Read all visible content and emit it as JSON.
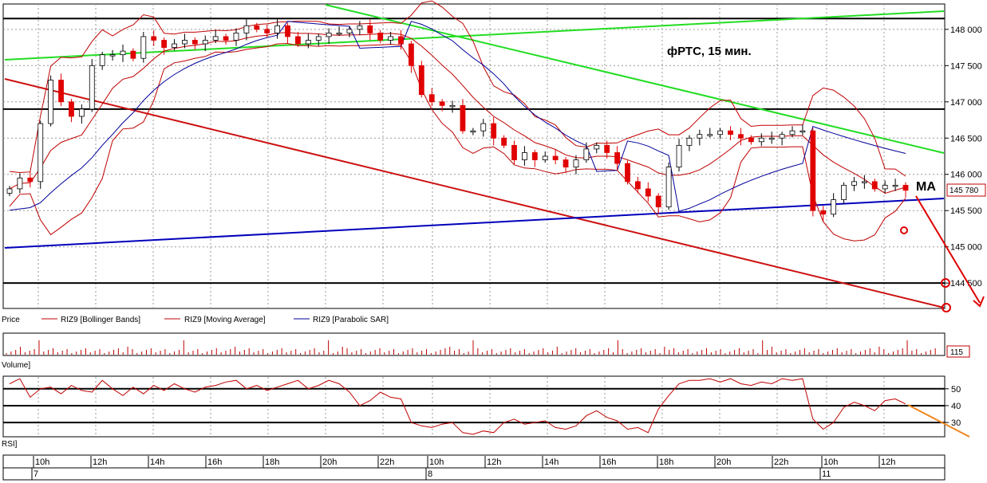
{
  "chart_data": {
    "type": "candlestick",
    "title": "фРТС,  15 мин.",
    "annotation_ma": "MA",
    "price_panel": {
      "ylim": [
        144150,
        148350
      ],
      "yticks": [
        144500,
        145000,
        145500,
        146000,
        146500,
        147000,
        147500,
        148000
      ],
      "ytick_labels": [
        "144 500",
        "145 000",
        "145 500",
        "146 000",
        "146 500",
        "147 000",
        "147 500",
        "148 000"
      ],
      "last_price": 145780,
      "last_price_label": "145 780",
      "horizontal_levels": [
        144500,
        146900,
        148150
      ],
      "legend": {
        "price": "Price",
        "bollinger": "RIZ9 [Bollinger Bands]",
        "moving_average": "RIZ9 [Moving Average]",
        "parabolic_sar": "RIZ9 [Parabolic SAR]"
      },
      "close_series": [
        145800,
        145950,
        145900,
        146700,
        147300,
        147000,
        146800,
        146900,
        147500,
        147650,
        147650,
        147700,
        147600,
        147900,
        147850,
        147750,
        147800,
        147850,
        147800,
        147850,
        147900,
        147850,
        147950,
        148050,
        148000,
        147950,
        148050,
        147900,
        147800,
        147850,
        147900,
        147950,
        147950,
        148000,
        148050,
        147950,
        147850,
        147900,
        147800,
        147500,
        147100,
        147000,
        146950,
        146950,
        146600,
        146600,
        146700,
        146500,
        146400,
        146200,
        146300,
        146200,
        146250,
        146200,
        146100,
        146200,
        146350,
        146400,
        146300,
        146150,
        145900,
        145800,
        145700,
        145550,
        146100,
        146400,
        146500,
        146550,
        146550,
        146600,
        146550,
        146500,
        146450,
        146500,
        146500,
        146550,
        146600,
        146600,
        145500,
        145450,
        145650,
        145850,
        145900,
        145900,
        145800,
        145850,
        145850,
        145780
      ]
    },
    "volume_panel": {
      "label": "Volume]",
      "last_value_label": "115"
    },
    "rsi_panel": {
      "label": "RSI]",
      "ylim": [
        22,
        57
      ],
      "levels": [
        30,
        40,
        50
      ],
      "tick_labels": [
        "30",
        "40",
        "50"
      ],
      "rsi_series": [
        53,
        56,
        45,
        50,
        51,
        47,
        52,
        49,
        48,
        55,
        50,
        46,
        51,
        47,
        52,
        49,
        53,
        50,
        48,
        51,
        52,
        54,
        55,
        50,
        52,
        49,
        51,
        53,
        55,
        50,
        52,
        55,
        53,
        48,
        40,
        43,
        48,
        45,
        44,
        30,
        28,
        27,
        29,
        30,
        24,
        23,
        25,
        24,
        30,
        32,
        29,
        30,
        31,
        27,
        26,
        28,
        34,
        37,
        33,
        31,
        26,
        27,
        24,
        38,
        46,
        53,
        55,
        55,
        56,
        54,
        56,
        53,
        52,
        54,
        53,
        56,
        55,
        56,
        32,
        26,
        30,
        39,
        42,
        40,
        37,
        43,
        44,
        41
      ]
    },
    "x_axis": {
      "tick_labels": [
        "10h",
        "12h",
        "14h",
        "16h",
        "18h",
        "20h",
        "22h",
        "10h",
        "12h",
        "14h",
        "16h",
        "18h",
        "20h",
        "22h",
        "10h",
        "12h"
      ],
      "day_labels": [
        "7",
        "8",
        "11"
      ]
    },
    "colors": {
      "up_candle": "#ffffff",
      "down_candle": "#e00000",
      "bollinger": "#c00000",
      "sar": "#000099",
      "green_trend": "#22dd22",
      "red_trend": "#cc1111",
      "blue_trend": "#0000bb",
      "forecast_arrow": "#e00000",
      "rsi_arrow": "#f0851f"
    }
  }
}
